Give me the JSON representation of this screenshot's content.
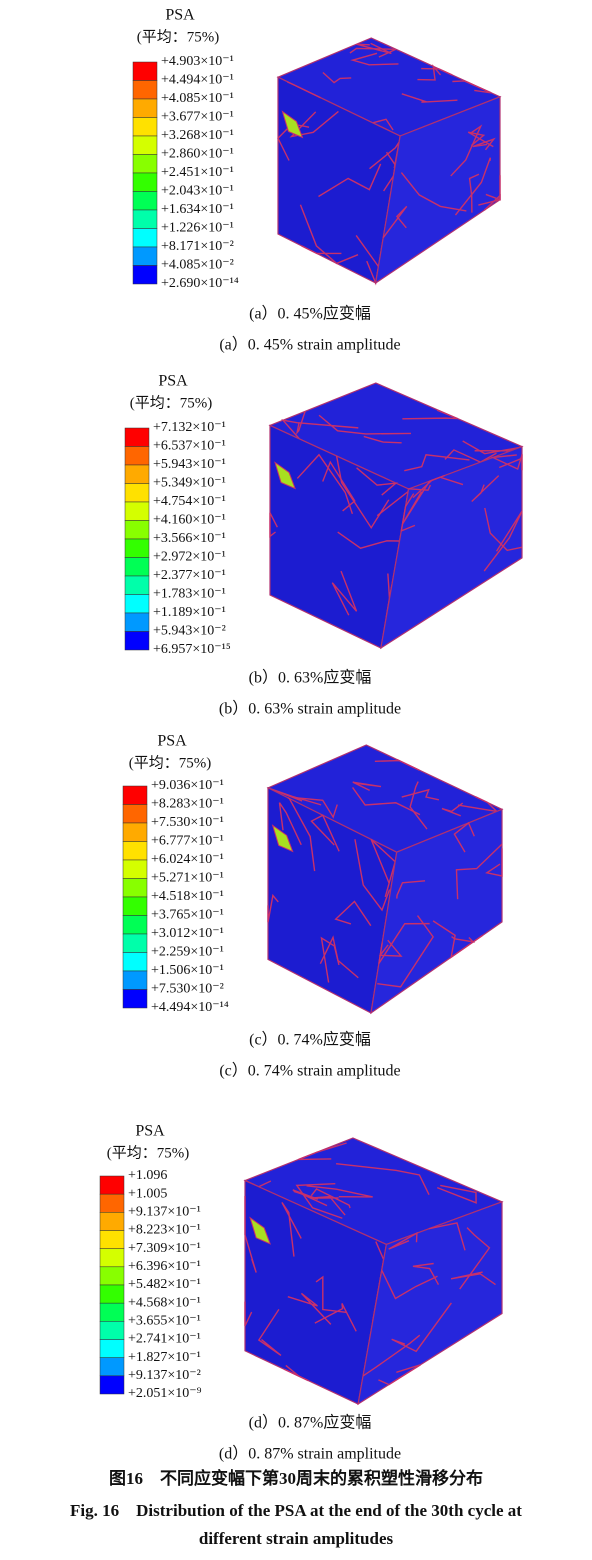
{
  "colorbar_colors": [
    "#ff0000",
    "#ff6600",
    "#ffaa00",
    "#ffe100",
    "#d4ff00",
    "#88ff00",
    "#33ff00",
    "#00ff55",
    "#00ffaa",
    "#00ffff",
    "#0099ff",
    "#0000ff"
  ],
  "panels": [
    {
      "legend_title": "PSA",
      "legend_subtitle": "(平均：75%)",
      "labels": [
        "+4.903×10⁻¹",
        "+4.494×10⁻¹",
        "+4.085×10⁻¹",
        "+3.677×10⁻¹",
        "+3.268×10⁻¹",
        "+2.860×10⁻¹",
        "+2.451×10⁻¹",
        "+2.043×10⁻¹",
        "+1.634×10⁻¹",
        "+1.226×10⁻¹",
        "+8.171×10⁻²",
        "+4.085×10⁻²",
        "+2.690×10⁻¹⁴"
      ],
      "caption_cn": "(a）0. 45%应变幅",
      "caption_en": "(a）0. 45% strain amplitude"
    },
    {
      "legend_title": "PSA",
      "legend_subtitle": "(平均：75%)",
      "labels": [
        "+7.132×10⁻¹",
        "+6.537×10⁻¹",
        "+5.943×10⁻¹",
        "+5.349×10⁻¹",
        "+4.754×10⁻¹",
        "+4.160×10⁻¹",
        "+3.566×10⁻¹",
        "+2.972×10⁻¹",
        "+2.377×10⁻¹",
        "+1.783×10⁻¹",
        "+1.189×10⁻¹",
        "+5.943×10⁻²",
        "+6.957×10⁻¹⁵"
      ],
      "caption_cn": "(b）0. 63%应变幅",
      "caption_en": "(b）0. 63% strain amplitude"
    },
    {
      "legend_title": "PSA",
      "legend_subtitle": "(平均：75%)",
      "labels": [
        "+9.036×10⁻¹",
        "+8.283×10⁻¹",
        "+7.530×10⁻¹",
        "+6.777×10⁻¹",
        "+6.024×10⁻¹",
        "+5.271×10⁻¹",
        "+4.518×10⁻¹",
        "+3.765×10⁻¹",
        "+3.012×10⁻¹",
        "+2.259×10⁻¹",
        "+1.506×10⁻¹",
        "+7.530×10⁻²",
        "+4.494×10⁻¹⁴"
      ],
      "caption_cn": "(c）0. 74%应变幅",
      "caption_en": "(c）0. 74% strain amplitude"
    },
    {
      "legend_title": "PSA",
      "legend_subtitle": "(平均：75%)",
      "labels": [
        "+1.096",
        "+1.005",
        "+9.137×10⁻¹",
        "+8.223×10⁻¹",
        "+7.309×10⁻¹",
        "+6.396×10⁻¹",
        "+5.482×10⁻¹",
        "+4.568×10⁻¹",
        "+3.655×10⁻¹",
        "+2.741×10⁻¹",
        "+1.827×10⁻¹",
        "+9.137×10⁻²",
        "+2.051×10⁻⁹"
      ],
      "caption_cn": "(d）0. 87%应变幅",
      "caption_en": "(d）0. 87% strain amplitude"
    }
  ],
  "figure_caption_cn": "图16　不同应变幅下第30周末的累积塑性滑移分布",
  "figure_caption_en": "Fig. 16　Distribution of the PSA at the end of the 30th cycle at different strain amplitudes"
}
